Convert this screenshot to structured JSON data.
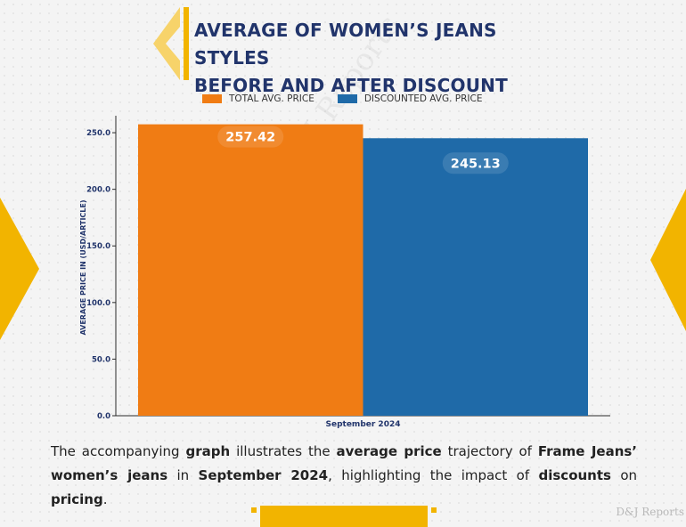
{
  "title": {
    "line1": "AVERAGE OF WOMEN’S JEANS STYLES",
    "line2": "BEFORE AND AFTER DISCOUNT"
  },
  "colors": {
    "total": "#f07c14",
    "discounted": "#1f6aa8",
    "accent": "#f2b400",
    "title": "#21346b"
  },
  "chart_data": {
    "type": "bar",
    "categories": [
      "September 2024"
    ],
    "series": [
      {
        "name": "TOTAL AVG. PRICE",
        "values": [
          257.42
        ],
        "label": "257.42"
      },
      {
        "name": "DISCOUNTED AVG. PRICE",
        "values": [
          245.13
        ],
        "label": "245.13"
      }
    ],
    "ylabel": "AVERAGE PRICE IN (USD/ARTICLE)",
    "xlabel": "",
    "ylim": [
      0,
      265
    ],
    "yticks": [
      "0.0",
      "50.0",
      "100.0",
      "150.0",
      "200.0",
      "250.0"
    ],
    "legend": "top-center"
  },
  "description": {
    "p1": "The accompanying ",
    "b1": "graph",
    "p2": " illustrates the ",
    "b2": "average price",
    "p3": " trajectory of ",
    "b3": "Frame Jeans’ women’s jeans",
    "p4": " in ",
    "b4": "September 2024",
    "p5": ", highlighting the impact of ",
    "b5": "discounts",
    "p6": " on ",
    "b6": "pricing",
    "p7": "."
  },
  "watermark": "D&J Reports"
}
